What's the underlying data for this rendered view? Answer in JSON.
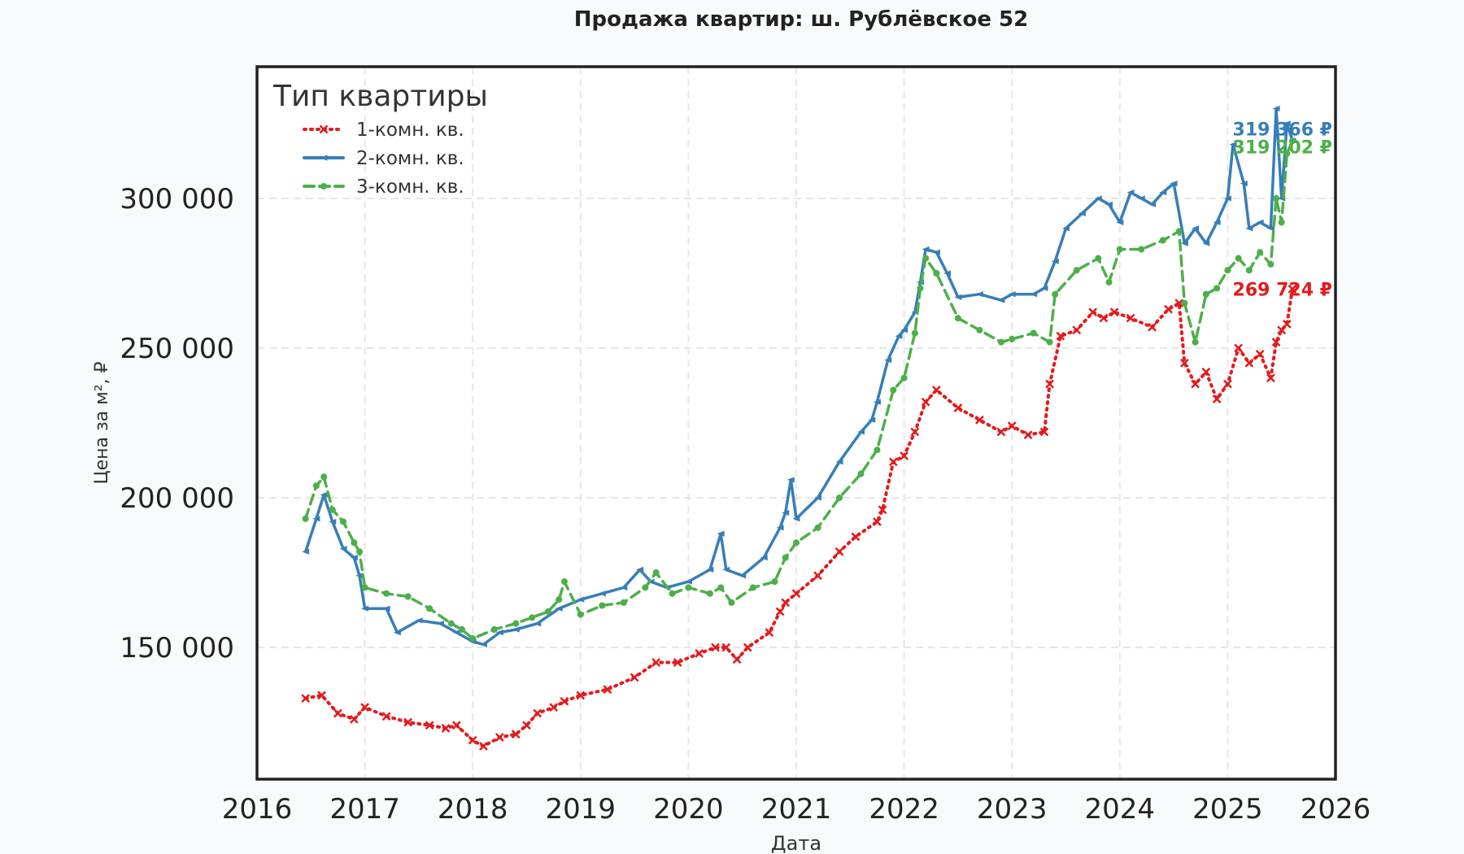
{
  "chart_data": {
    "type": "line",
    "title": "Продажа квартир: ш. Рублёвское 52",
    "xlabel": "Дата",
    "ylabel": "Цена за м², ₽",
    "xlim": [
      2016,
      2026
    ],
    "ylim": [
      106000,
      344000
    ],
    "x_ticks": [
      "2016",
      "2017",
      "2018",
      "2019",
      "2020",
      "2021",
      "2022",
      "2023",
      "2024",
      "2025",
      "2026"
    ],
    "y_ticks": [
      "150 000",
      "200 000",
      "250 000",
      "300 000"
    ],
    "y_tick_values": [
      150000,
      200000,
      250000,
      300000
    ],
    "grid": true,
    "legend": {
      "title": "Тип квартиры",
      "placement": "top-left"
    },
    "series": [
      {
        "name": "1-комн. кв.",
        "color": "#e41a1c",
        "style": "dotted",
        "marker": "x",
        "end_label": "269 724 ₽",
        "x": [
          2016.45,
          2016.6,
          2016.75,
          2016.9,
          2017.0,
          2017.2,
          2017.4,
          2017.6,
          2017.75,
          2017.85,
          2018.0,
          2018.1,
          2018.25,
          2018.4,
          2018.5,
          2018.6,
          2018.75,
          2018.85,
          2019.0,
          2019.25,
          2019.5,
          2019.7,
          2019.9,
          2020.1,
          2020.25,
          2020.35,
          2020.45,
          2020.55,
          2020.75,
          2020.85,
          2020.9,
          2021.0,
          2021.2,
          2021.4,
          2021.55,
          2021.75,
          2021.8,
          2021.9,
          2022.0,
          2022.1,
          2022.2,
          2022.3,
          2022.5,
          2022.7,
          2022.9,
          2023.0,
          2023.15,
          2023.3,
          2023.35,
          2023.45,
          2023.6,
          2023.75,
          2023.85,
          2023.95,
          2024.1,
          2024.3,
          2024.45,
          2024.55,
          2024.6,
          2024.7,
          2024.8,
          2024.9,
          2025.0,
          2025.1,
          2025.2,
          2025.3,
          2025.4,
          2025.45,
          2025.5,
          2025.55,
          2025.6
        ],
        "y": [
          133000,
          134000,
          128000,
          126000,
          130000,
          127000,
          125000,
          124000,
          123000,
          124000,
          119000,
          117000,
          120000,
          121000,
          124000,
          128000,
          130000,
          132000,
          134000,
          136000,
          140000,
          145000,
          145000,
          148000,
          150000,
          150000,
          146000,
          150000,
          155000,
          162000,
          165000,
          168000,
          174000,
          182000,
          187000,
          192000,
          196000,
          212000,
          214000,
          222000,
          232000,
          236000,
          230000,
          226000,
          222000,
          224000,
          221000,
          222000,
          238000,
          254000,
          256000,
          262000,
          260000,
          262000,
          260000,
          257000,
          263000,
          265000,
          245000,
          238000,
          242000,
          233000,
          238000,
          250000,
          245000,
          248000,
          240000,
          252000,
          256000,
          258000,
          269724
        ]
      },
      {
        "name": "2-комн. кв.",
        "color": "#377eb8",
        "style": "solid",
        "marker": "triangle",
        "end_label": "319 366 ₽",
        "x": [
          2016.45,
          2016.55,
          2016.62,
          2016.7,
          2016.8,
          2016.9,
          2016.95,
          2017.0,
          2017.2,
          2017.3,
          2017.5,
          2017.7,
          2017.85,
          2018.0,
          2018.1,
          2018.25,
          2018.4,
          2018.6,
          2018.8,
          2019.0,
          2019.2,
          2019.4,
          2019.55,
          2019.65,
          2019.8,
          2020.0,
          2020.2,
          2020.3,
          2020.35,
          2020.5,
          2020.7,
          2020.85,
          2020.9,
          2020.95,
          2021.0,
          2021.2,
          2021.4,
          2021.6,
          2021.7,
          2021.75,
          2021.85,
          2021.95,
          2022.0,
          2022.1,
          2022.15,
          2022.2,
          2022.3,
          2022.4,
          2022.5,
          2022.7,
          2022.9,
          2023.0,
          2023.2,
          2023.3,
          2023.4,
          2023.5,
          2023.65,
          2023.8,
          2023.9,
          2024.0,
          2024.1,
          2024.2,
          2024.3,
          2024.4,
          2024.5,
          2024.6,
          2024.7,
          2024.8,
          2024.9,
          2025.0,
          2025.05,
          2025.15,
          2025.2,
          2025.3,
          2025.4,
          2025.45,
          2025.5,
          2025.55,
          2025.6
        ],
        "y": [
          182000,
          193000,
          201000,
          192000,
          183000,
          180000,
          174000,
          163000,
          163000,
          155000,
          159000,
          158000,
          155000,
          152000,
          151000,
          155000,
          156000,
          158000,
          163000,
          166000,
          168000,
          170000,
          176000,
          172000,
          170000,
          172000,
          176000,
          188000,
          176000,
          174000,
          180000,
          190000,
          195000,
          206000,
          193000,
          200000,
          212000,
          222000,
          226000,
          232000,
          246000,
          254000,
          256000,
          262000,
          272000,
          283000,
          282000,
          275000,
          267000,
          268000,
          266000,
          268000,
          268000,
          270000,
          279000,
          290000,
          295000,
          300000,
          298000,
          292000,
          302000,
          300000,
          298000,
          302000,
          305000,
          285000,
          290000,
          285000,
          292000,
          300000,
          318000,
          305000,
          290000,
          292000,
          290000,
          330000,
          300000,
          325000,
          319366
        ]
      },
      {
        "name": "3-комн. кв.",
        "color": "#4daf4a",
        "style": "dashed",
        "marker": "circle",
        "end_label": "319 202 ₽",
        "x": [
          2016.45,
          2016.55,
          2016.62,
          2016.7,
          2016.8,
          2016.9,
          2016.95,
          2017.0,
          2017.2,
          2017.4,
          2017.6,
          2017.8,
          2017.9,
          2018.0,
          2018.2,
          2018.4,
          2018.55,
          2018.7,
          2018.8,
          2018.85,
          2019.0,
          2019.2,
          2019.4,
          2019.6,
          2019.7,
          2019.85,
          2020.0,
          2020.2,
          2020.3,
          2020.4,
          2020.6,
          2020.8,
          2020.9,
          2021.0,
          2021.2,
          2021.4,
          2021.6,
          2021.75,
          2021.9,
          2022.0,
          2022.1,
          2022.15,
          2022.2,
          2022.3,
          2022.5,
          2022.7,
          2022.9,
          2023.0,
          2023.2,
          2023.35,
          2023.4,
          2023.6,
          2023.8,
          2023.9,
          2024.0,
          2024.2,
          2024.4,
          2024.55,
          2024.6,
          2024.7,
          2024.8,
          2024.9,
          2025.0,
          2025.1,
          2025.2,
          2025.3,
          2025.4,
          2025.45,
          2025.5,
          2025.55,
          2025.6
        ],
        "y": [
          193000,
          204000,
          207000,
          196000,
          192000,
          185000,
          182000,
          170000,
          168000,
          167000,
          163000,
          158000,
          156000,
          153000,
          156000,
          158000,
          160000,
          162000,
          166000,
          172000,
          161000,
          164000,
          165000,
          170000,
          175000,
          168000,
          170000,
          168000,
          170000,
          165000,
          170000,
          172000,
          180000,
          185000,
          190000,
          200000,
          208000,
          216000,
          236000,
          240000,
          255000,
          270000,
          280000,
          275000,
          260000,
          256000,
          252000,
          253000,
          255000,
          252000,
          268000,
          276000,
          280000,
          272000,
          283000,
          283000,
          286000,
          289000,
          265000,
          252000,
          268000,
          270000,
          276000,
          280000,
          276000,
          282000,
          278000,
          300000,
          292000,
          315000,
          319202
        ]
      }
    ]
  }
}
